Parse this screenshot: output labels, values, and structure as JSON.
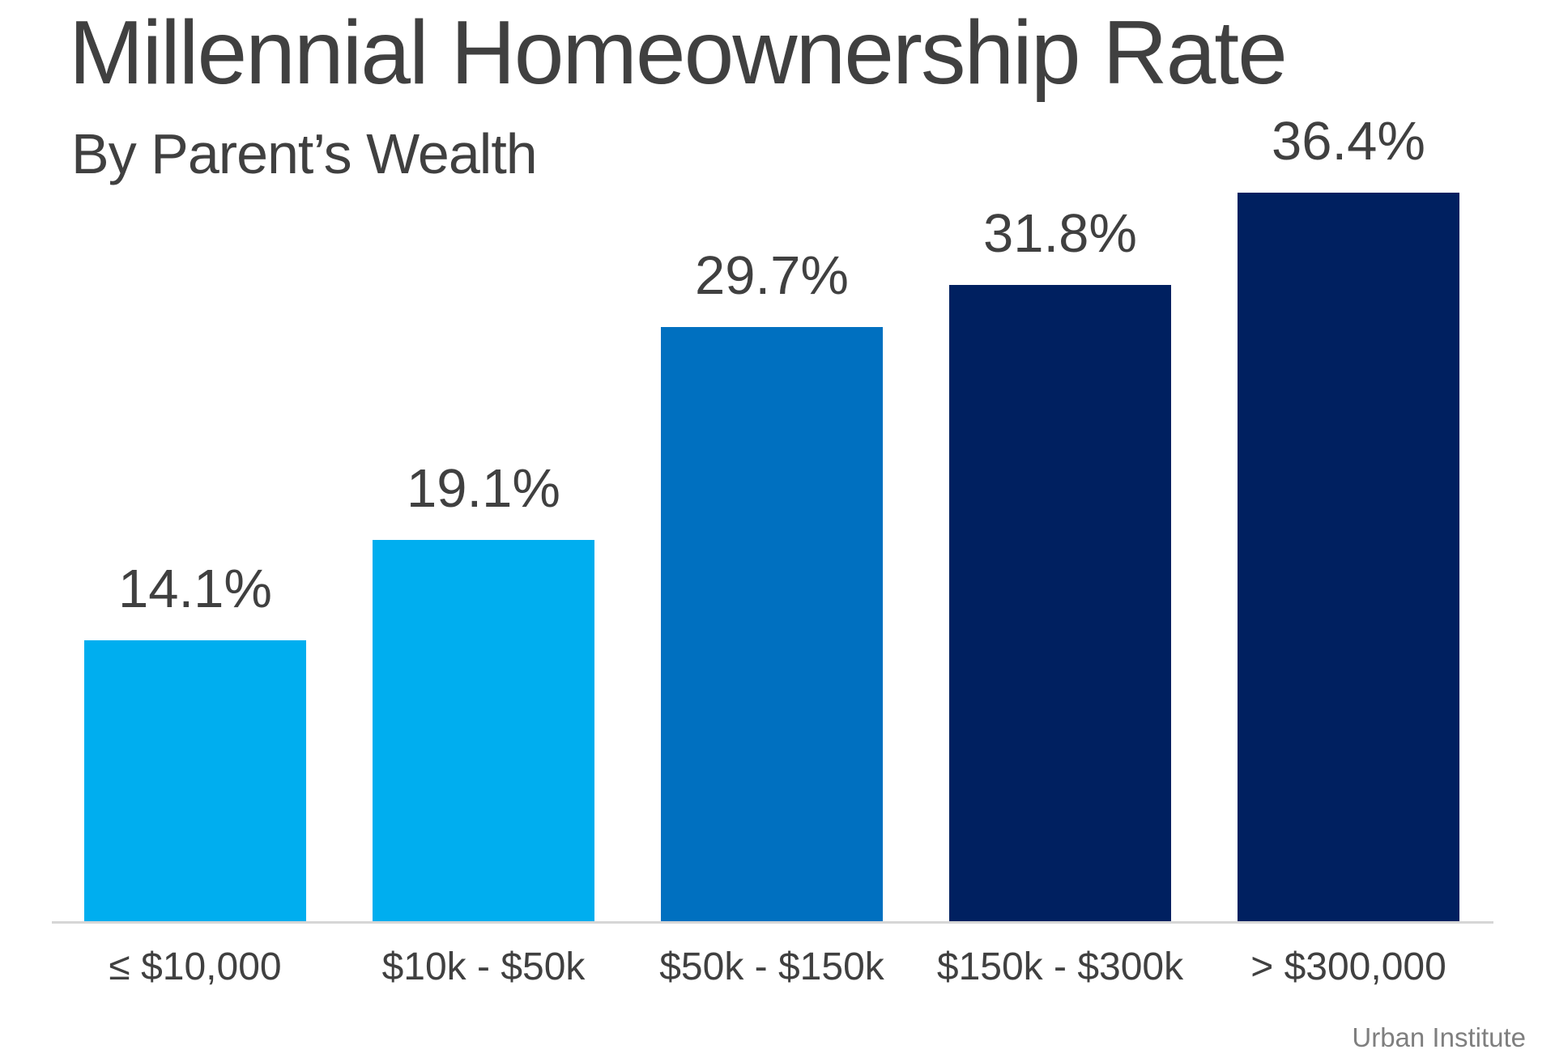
{
  "header": {
    "title": "Millennial Homeownership Rate",
    "subtitle": "By Parent’s Wealth"
  },
  "source": {
    "label": "Urban Institute"
  },
  "colors": {
    "light_blue": "#00AEEF",
    "medium_blue": "#0070C0",
    "dark_navy": "#002060",
    "text_gray": "#404040",
    "axis_gray": "#D6D6D6",
    "source_gray": "#7F7F7F"
  },
  "chart_data": {
    "type": "bar",
    "title": "Millennial Homeownership Rate",
    "subtitle": "By Parent’s Wealth",
    "categories": [
      "≤ $10,000",
      "$10k - $50k",
      "$50k - $150k",
      "$150k - $300k",
      "> $300,000"
    ],
    "values": [
      14.1,
      19.1,
      29.7,
      31.8,
      36.4
    ],
    "value_labels": [
      "14.1%",
      "19.1%",
      "29.7%",
      "31.8%",
      "36.4%"
    ],
    "bar_colors": [
      "#00AEEF",
      "#00AEEF",
      "#0070C0",
      "#002060",
      "#002060"
    ],
    "xlabel": "",
    "ylabel": "",
    "ylim": [
      0,
      40
    ],
    "grid": false,
    "legend_position": "none",
    "source": "Urban Institute"
  }
}
